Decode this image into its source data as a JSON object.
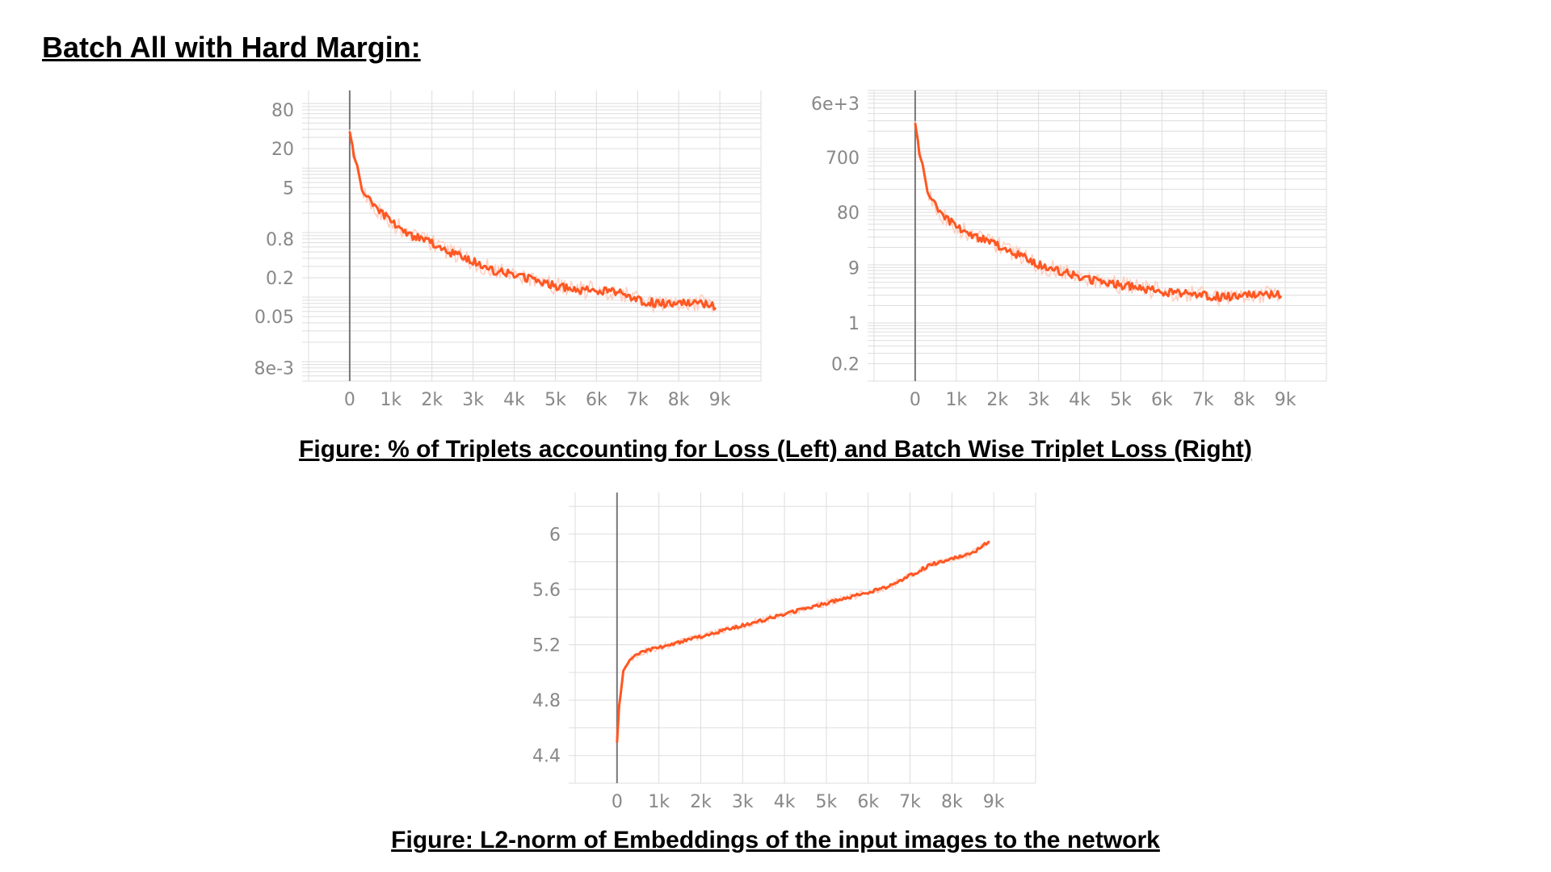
{
  "page": {
    "heading": "Batch All with Hard Margin:",
    "caption_top": "Figure: % of Triplets accounting for Loss (Left) and Batch Wise Triplet Loss (Right)",
    "caption_bottom": "Figure: L2-norm of Embeddings of the input images to the network"
  },
  "colors": {
    "line": "#ff5722",
    "raw_line": "#ffcdbf",
    "grid": "#dddddd",
    "zero_axis": "#777777",
    "tick_text": "#888888"
  },
  "chart_data": [
    {
      "type": "line",
      "scale": "log",
      "grid": true,
      "x_ticks": [
        "0",
        "1k",
        "2k",
        "3k",
        "4k",
        "5k",
        "6k",
        "7k",
        "8k",
        "9k"
      ],
      "y_ticks": [
        "80",
        "20",
        "5",
        "0.8",
        "0.2",
        "0.05",
        "8e-3"
      ],
      "xlim": [
        -1000,
        10000
      ],
      "ylim": [
        0.005,
        160
      ],
      "series": [
        {
          "x": [
            0,
            100,
            300,
            600,
            1000,
            1500,
            2000,
            2500,
            3000,
            3500,
            4000,
            4500,
            5000,
            5500,
            6000,
            6500,
            7000,
            7500,
            8000,
            8500,
            8900
          ],
          "y": [
            40,
            15,
            5,
            2.6,
            1.5,
            0.9,
            0.7,
            0.48,
            0.36,
            0.26,
            0.22,
            0.18,
            0.15,
            0.13,
            0.13,
            0.12,
            0.09,
            0.08,
            0.08,
            0.08,
            0.07
          ]
        }
      ]
    },
    {
      "type": "line",
      "scale": "log",
      "grid": true,
      "x_ticks": [
        "0",
        "1k",
        "2k",
        "3k",
        "4k",
        "5k",
        "6k",
        "7k",
        "8k",
        "9k"
      ],
      "y_ticks": [
        "6e+3",
        "700",
        "80",
        "9",
        "1",
        "0.2"
      ],
      "xlim": [
        -1000,
        10000
      ],
      "ylim": [
        0.1,
        10000
      ],
      "series": [
        {
          "x": [
            0,
            100,
            300,
            600,
            1000,
            1500,
            2000,
            2500,
            3000,
            3500,
            4000,
            4500,
            5000,
            5500,
            6000,
            6500,
            7000,
            7500,
            8000,
            8500,
            8900
          ],
          "y": [
            3000,
            800,
            200,
            80,
            45,
            30,
            22,
            15,
            10,
            8,
            6,
            5,
            4.5,
            4,
            3.5,
            3.2,
            3,
            2.8,
            3,
            3,
            3
          ]
        }
      ]
    },
    {
      "type": "line",
      "scale": "linear",
      "grid": true,
      "x_ticks": [
        "0",
        "1k",
        "2k",
        "3k",
        "4k",
        "5k",
        "6k",
        "7k",
        "8k",
        "9k"
      ],
      "y_ticks": [
        "6",
        "5.6",
        "5.2",
        "4.8",
        "4.4"
      ],
      "xlim": [
        -1000,
        10000
      ],
      "ylim": [
        4.2,
        6.3
      ],
      "series": [
        {
          "x": [
            0,
            50,
            150,
            300,
            600,
            1000,
            1500,
            2000,
            2500,
            3000,
            3500,
            4000,
            4500,
            5000,
            5500,
            6000,
            6500,
            7000,
            7500,
            8000,
            8500,
            8900
          ],
          "y": [
            4.5,
            4.75,
            5.0,
            5.1,
            5.15,
            5.18,
            5.22,
            5.26,
            5.3,
            5.34,
            5.38,
            5.42,
            5.46,
            5.5,
            5.54,
            5.58,
            5.62,
            5.7,
            5.78,
            5.82,
            5.86,
            5.95
          ]
        }
      ]
    }
  ]
}
